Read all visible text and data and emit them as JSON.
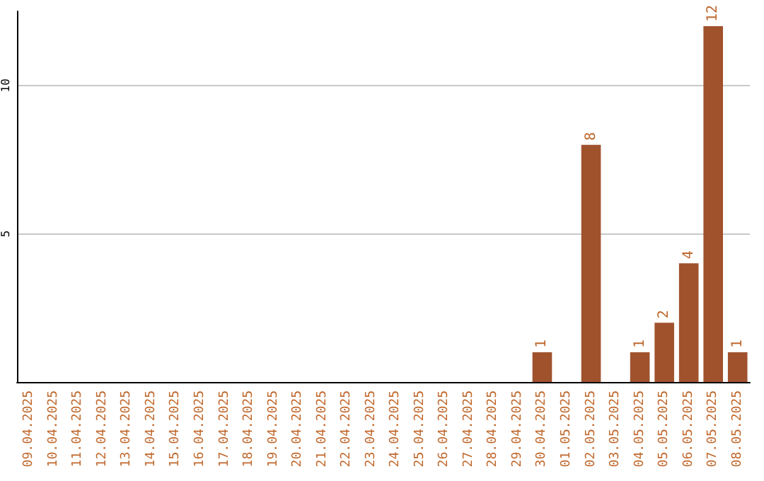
{
  "chart_data": {
    "type": "bar",
    "categories": [
      "09.04.2025",
      "10.04.2025",
      "11.04.2025",
      "12.04.2025",
      "13.04.2025",
      "14.04.2025",
      "15.04.2025",
      "16.04.2025",
      "17.04.2025",
      "18.04.2025",
      "19.04.2025",
      "20.04.2025",
      "21.04.2025",
      "22.04.2025",
      "23.04.2025",
      "24.04.2025",
      "25.04.2025",
      "26.04.2025",
      "27.04.2025",
      "28.04.2025",
      "29.04.2025",
      "30.04.2025",
      "01.05.2025",
      "02.05.2025",
      "03.05.2025",
      "04.05.2025",
      "05.05.2025",
      "06.05.2025",
      "07.05.2025",
      "08.05.2025"
    ],
    "values": [
      0,
      0,
      0,
      0,
      0,
      0,
      0,
      0,
      0,
      0,
      0,
      0,
      0,
      0,
      0,
      0,
      0,
      0,
      0,
      0,
      0,
      1,
      0,
      8,
      0,
      1,
      2,
      4,
      12,
      1
    ],
    "value_labels": [
      null,
      null,
      null,
      null,
      null,
      null,
      null,
      null,
      null,
      null,
      null,
      null,
      null,
      null,
      null,
      null,
      null,
      null,
      null,
      null,
      null,
      "1",
      null,
      "8",
      null,
      "1",
      "2",
      "4",
      "12",
      "1"
    ],
    "color": "#a0522d",
    "ylim": [
      0,
      12.5
    ],
    "yticks": [
      5,
      10
    ],
    "grid": "y"
  }
}
